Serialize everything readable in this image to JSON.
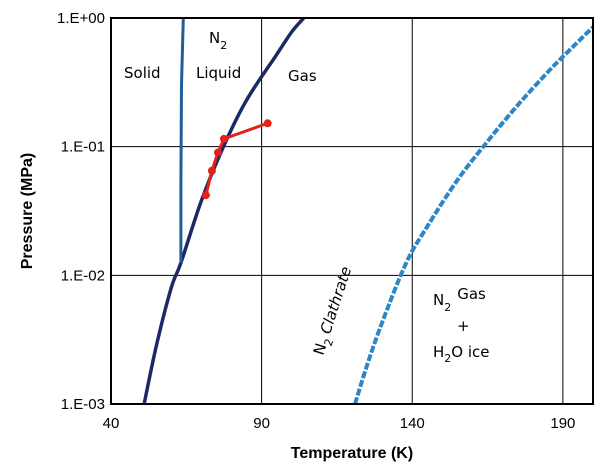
{
  "chart_data": {
    "type": "line",
    "title": "",
    "xlabel": "Temperature (K)",
    "ylabel": "Pressure (MPa)",
    "xlim": [
      40,
      200
    ],
    "ylim": [
      0.001,
      1.0
    ],
    "yscale": "log",
    "grid": true,
    "x_ticks": [
      40,
      90,
      140,
      190
    ],
    "x_tick_labels": [
      "40",
      "90",
      "140",
      "190"
    ],
    "y_ticks": [
      1.0,
      0.1,
      0.01,
      0.001
    ],
    "y_tick_labels": [
      "1.E+00",
      "1.E-01",
      "1.E-02",
      "1.E-03"
    ],
    "colors": {
      "vapor_curve": "#1b2a66",
      "melting_curve": "#1f5f99",
      "clathrate_curve": "#2f86c6",
      "data_points": "#e0241b"
    },
    "series": [
      {
        "key": "vapor",
        "style": "solid",
        "x": [
          51,
          55,
          60,
          63.2,
          70,
          77.4,
          85,
          95,
          100,
          104
        ],
        "y": [
          0.001,
          0.0028,
          0.008,
          0.0125,
          0.038,
          0.101,
          0.23,
          0.52,
          0.78,
          1.0
        ]
      },
      {
        "key": "melting",
        "style": "solid",
        "x": [
          63.2,
          63.2,
          63.4,
          64
        ],
        "y": [
          0.0125,
          0.05,
          0.3,
          1.0
        ]
      },
      {
        "key": "clathrate",
        "style": "dashed",
        "x": [
          121,
          125,
          130,
          138,
          145,
          155,
          165,
          175,
          185,
          190,
          200
        ],
        "y": [
          0.001,
          0.002,
          0.0043,
          0.0125,
          0.024,
          0.055,
          0.11,
          0.21,
          0.38,
          0.5,
          0.85
        ]
      },
      {
        "key": "data",
        "style": "markers-line",
        "x": [
          71.5,
          73.5,
          75.5,
          77.5,
          92
        ],
        "y": [
          0.042,
          0.065,
          0.09,
          0.115,
          0.152
        ]
      }
    ],
    "annotations": {
      "solid": "Solid",
      "n2": "N",
      "n2_sub": "2",
      "liquid": "Liquid",
      "gas": "Gas",
      "clathrate": "Clathrate",
      "clathrate_prefix": "N",
      "clathrate_sub": "2",
      "gas_region_n": "N",
      "gas_region_sub": "2",
      "gas_region_gas": "Gas",
      "gas_region_plus": "+",
      "ice_h": "H",
      "ice_sub": "2",
      "ice_rest": "O ice"
    }
  }
}
